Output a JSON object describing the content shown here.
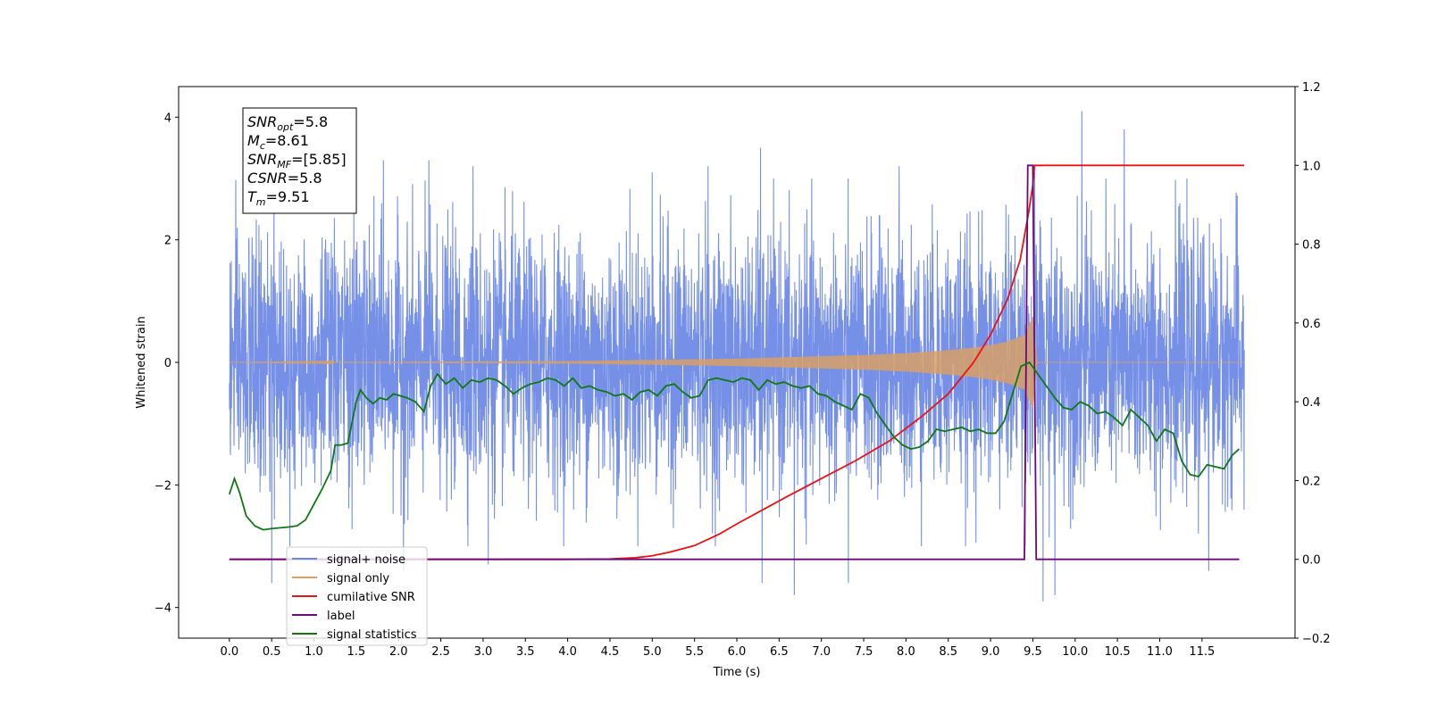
{
  "chart_data": {
    "type": "line",
    "xlabel": "Time (s)",
    "ylabel": "Whitened strain",
    "xlim": [
      -0.6,
      12.6
    ],
    "ylim": [
      -4.5,
      4.5
    ],
    "y2lim": [
      -0.2,
      1.2
    ],
    "x_ticks": [
      0.0,
      0.5,
      1.0,
      1.5,
      2.0,
      2.5,
      3.0,
      3.5,
      4.0,
      4.5,
      5.0,
      5.5,
      6.0,
      6.5,
      7.0,
      7.5,
      8.0,
      8.5,
      9.0,
      9.5,
      10.0,
      10.5,
      11.0,
      11.5
    ],
    "x_tick_labels": [
      "0.0",
      "0.5",
      "1.0",
      "1.5",
      "2.0",
      "2.5",
      "3.0",
      "3.5",
      "4.0",
      "4.5",
      "5.0",
      "5.5",
      "6.0",
      "6.5",
      "7.0",
      "7.5",
      "8.0",
      "8.5",
      "9.0",
      "9.5",
      "10.0",
      "10.5",
      "11.0",
      "11.5"
    ],
    "y_ticks": [
      -4,
      -2,
      0,
      2,
      4
    ],
    "y_tick_labels": [
      "−4",
      "−2",
      "0",
      "2",
      "4"
    ],
    "y2_ticks": [
      -0.2,
      0.0,
      0.2,
      0.4,
      0.6,
      0.8,
      1.0,
      1.2
    ],
    "y2_tick_labels": [
      "−0.2",
      "0.0",
      "0.2",
      "0.4",
      "0.6",
      "0.8",
      "1.0",
      "1.2"
    ],
    "grid": false,
    "legend_placement": "lower-left",
    "annotation": {
      "lines": [
        {
          "var": "SNR",
          "sub": "opt",
          "value": "=5.8"
        },
        {
          "var": "M",
          "sub": "c",
          "value": "=8.61"
        },
        {
          "var": "SNR",
          "sub": "MF",
          "value": "=[5.85]"
        },
        {
          "var": "CSNR",
          "sub": "",
          "value": "=5.8"
        },
        {
          "var": "T",
          "sub": "m",
          "value": "=9.51"
        }
      ]
    },
    "series": [
      {
        "name": "signal+ noise",
        "color": "#6f8ae6",
        "axis": "left",
        "style": "noise",
        "x_range": [
          0.0,
          12.0
        ],
        "amplitude_std": 1.0,
        "peaks": [
          {
            "x": 1.82,
            "y": 3.3
          },
          {
            "x": 2.36,
            "y": 3.3
          },
          {
            "x": 2.88,
            "y": 3.2
          },
          {
            "x": 5.0,
            "y": 3.1
          },
          {
            "x": 5.66,
            "y": 3.2
          },
          {
            "x": 6.28,
            "y": 3.5
          },
          {
            "x": 7.92,
            "y": 3.2
          },
          {
            "x": 9.52,
            "y": 3.1
          },
          {
            "x": 10.08,
            "y": 4.1
          },
          {
            "x": 10.58,
            "y": 3.8
          },
          {
            "x": 11.58,
            "y": 3.5
          },
          {
            "x": 0.5,
            "y": -3.6
          },
          {
            "x": 2.06,
            "y": -3.4
          },
          {
            "x": 3.06,
            "y": -3.3
          },
          {
            "x": 6.3,
            "y": -3.6
          },
          {
            "x": 6.68,
            "y": -3.8
          },
          {
            "x": 7.32,
            "y": -3.6
          },
          {
            "x": 9.62,
            "y": -3.9
          },
          {
            "x": 9.76,
            "y": -3.8
          },
          {
            "x": 11.58,
            "y": -3.4
          }
        ]
      },
      {
        "name": "signal only",
        "color": "#d9a066",
        "axis": "left",
        "style": "chirp",
        "envelope_x": [
          0.0,
          4.0,
          5.0,
          6.0,
          6.5,
          7.0,
          7.5,
          8.0,
          8.5,
          8.8,
          9.0,
          9.2,
          9.4,
          9.5,
          9.55,
          12.0
        ],
        "envelope_y": [
          0.0,
          0.02,
          0.04,
          0.06,
          0.08,
          0.1,
          0.12,
          0.15,
          0.2,
          0.24,
          0.28,
          0.34,
          0.44,
          0.75,
          0.0,
          0.0
        ]
      },
      {
        "name": "cumilative SNR",
        "color": "#ee1111",
        "axis": "right",
        "x": [
          0.0,
          4.0,
          4.5,
          4.8,
          5.0,
          5.2,
          5.5,
          5.8,
          6.0,
          6.3,
          6.6,
          7.0,
          7.4,
          7.8,
          8.2,
          8.5,
          8.8,
          9.0,
          9.2,
          9.35,
          9.45,
          9.5,
          9.52,
          12.0
        ],
        "y": [
          0.0,
          0.0,
          0.001,
          0.004,
          0.009,
          0.018,
          0.035,
          0.065,
          0.09,
          0.125,
          0.16,
          0.205,
          0.25,
          0.3,
          0.365,
          0.42,
          0.5,
          0.57,
          0.66,
          0.76,
          0.88,
          0.95,
          1.0,
          1.0
        ]
      },
      {
        "name": "label",
        "color": "#6a0a7a",
        "axis": "right",
        "x": [
          0.0,
          9.4,
          9.44,
          9.5,
          9.54,
          11.94
        ],
        "y": [
          0.0,
          0.0,
          1.0,
          1.0,
          0.0,
          0.0
        ]
      },
      {
        "name": "signal statistics",
        "color": "#117711",
        "axis": "right",
        "x": [
          0.0,
          0.06,
          0.12,
          0.2,
          0.3,
          0.4,
          0.5,
          0.6,
          0.7,
          0.8,
          0.9,
          1.0,
          1.1,
          1.2,
          1.25,
          1.32,
          1.4,
          1.5,
          1.55,
          1.62,
          1.7,
          1.78,
          1.86,
          1.94,
          2.02,
          2.1,
          2.2,
          2.3,
          2.38,
          2.46,
          2.56,
          2.66,
          2.76,
          2.86,
          2.96,
          3.06,
          3.16,
          3.26,
          3.36,
          3.46,
          3.56,
          3.66,
          3.76,
          3.86,
          3.96,
          4.06,
          4.16,
          4.26,
          4.36,
          4.46,
          4.56,
          4.66,
          4.76,
          4.86,
          4.96,
          5.06,
          5.16,
          5.26,
          5.36,
          5.46,
          5.56,
          5.66,
          5.76,
          5.86,
          5.96,
          6.06,
          6.16,
          6.26,
          6.36,
          6.46,
          6.56,
          6.66,
          6.76,
          6.86,
          6.96,
          7.06,
          7.16,
          7.26,
          7.36,
          7.46,
          7.56,
          7.66,
          7.76,
          7.86,
          7.96,
          8.06,
          8.16,
          8.26,
          8.36,
          8.46,
          8.56,
          8.66,
          8.76,
          8.86,
          8.96,
          9.06,
          9.16,
          9.26,
          9.36,
          9.46,
          9.56,
          9.66,
          9.76,
          9.86,
          9.96,
          10.06,
          10.16,
          10.26,
          10.36,
          10.46,
          10.56,
          10.66,
          10.76,
          10.86,
          10.96,
          11.06,
          11.16,
          11.26,
          11.36,
          11.46,
          11.56,
          11.66,
          11.76,
          11.86,
          11.94
        ],
        "y": [
          0.165,
          0.205,
          0.17,
          0.11,
          0.085,
          0.075,
          0.078,
          0.08,
          0.082,
          0.085,
          0.1,
          0.14,
          0.18,
          0.225,
          0.29,
          0.29,
          0.295,
          0.4,
          0.43,
          0.41,
          0.395,
          0.41,
          0.405,
          0.42,
          0.415,
          0.41,
          0.4,
          0.375,
          0.44,
          0.47,
          0.445,
          0.46,
          0.435,
          0.455,
          0.45,
          0.46,
          0.455,
          0.44,
          0.42,
          0.435,
          0.445,
          0.45,
          0.46,
          0.455,
          0.44,
          0.46,
          0.435,
          0.44,
          0.43,
          0.425,
          0.415,
          0.42,
          0.405,
          0.425,
          0.43,
          0.415,
          0.44,
          0.445,
          0.425,
          0.41,
          0.415,
          0.455,
          0.46,
          0.455,
          0.45,
          0.46,
          0.455,
          0.43,
          0.455,
          0.445,
          0.45,
          0.44,
          0.435,
          0.44,
          0.42,
          0.415,
          0.4,
          0.39,
          0.38,
          0.42,
          0.41,
          0.37,
          0.34,
          0.31,
          0.29,
          0.28,
          0.285,
          0.3,
          0.33,
          0.325,
          0.33,
          0.335,
          0.325,
          0.33,
          0.32,
          0.32,
          0.35,
          0.42,
          0.49,
          0.5,
          0.47,
          0.44,
          0.41,
          0.385,
          0.38,
          0.4,
          0.39,
          0.37,
          0.375,
          0.36,
          0.34,
          0.38,
          0.36,
          0.34,
          0.3,
          0.33,
          0.32,
          0.25,
          0.215,
          0.21,
          0.24,
          0.235,
          0.23,
          0.265,
          0.28
        ]
      }
    ]
  }
}
